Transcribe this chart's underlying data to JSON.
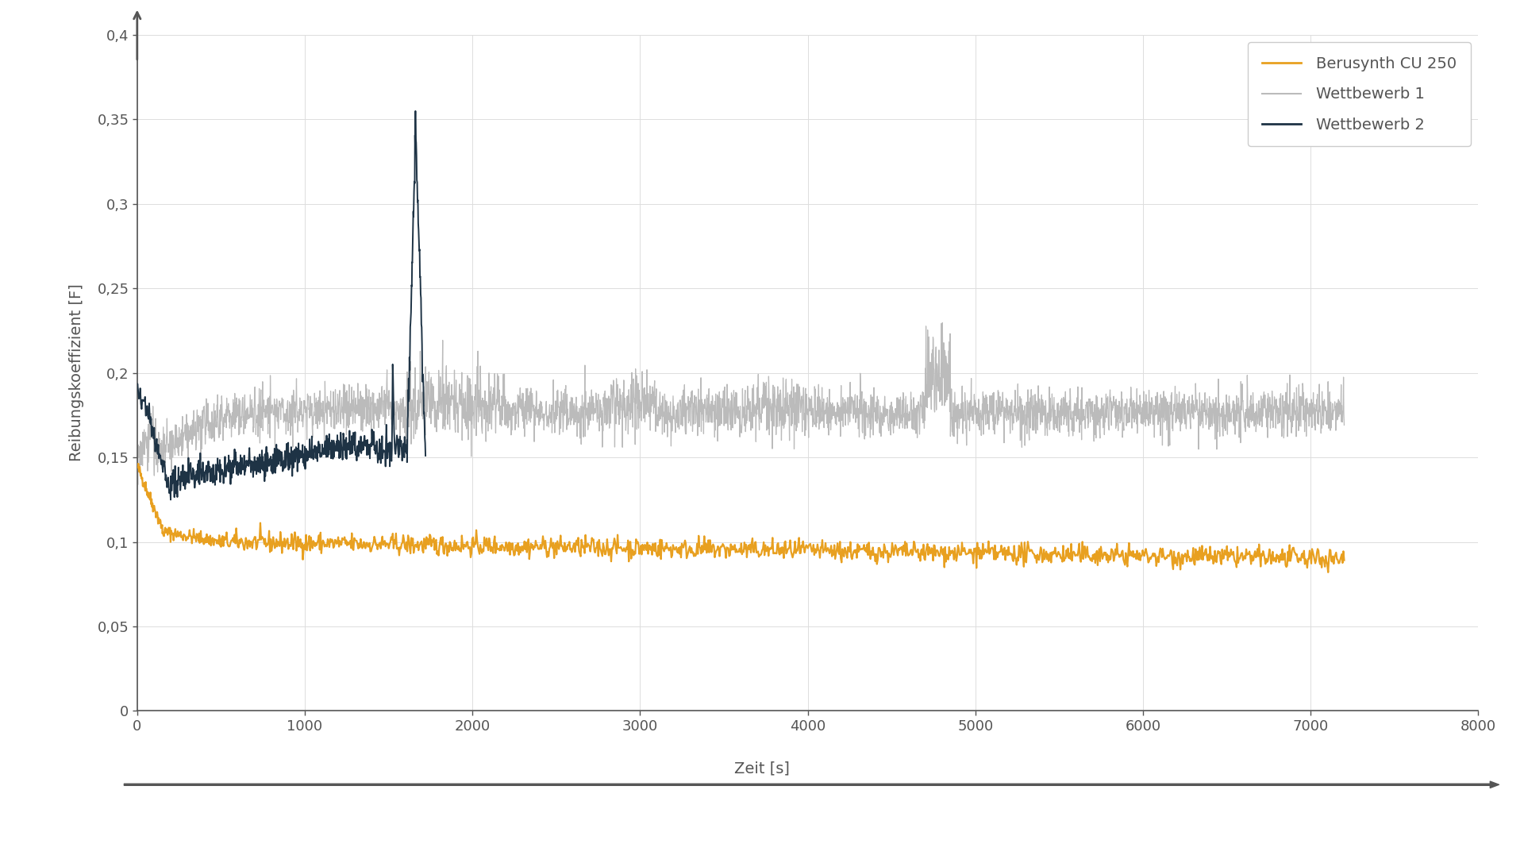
{
  "title": "",
  "ylabel": "Reibungskoeffizient [F]",
  "xlabel": "Zeit [s]",
  "xlim": [
    0,
    8000
  ],
  "ylim": [
    0,
    0.4
  ],
  "yticks": [
    0,
    0.05,
    0.1,
    0.15,
    0.2,
    0.25,
    0.3,
    0.35,
    0.4
  ],
  "xticks": [
    0,
    1000,
    2000,
    3000,
    4000,
    5000,
    6000,
    7000,
    8000
  ],
  "color_yellow": "#E8A020",
  "color_gray": "#BBBBBB",
  "color_dark": "#1E3345",
  "background_color": "#FFFFFF",
  "grid_color": "#DDDDDD",
  "legend_labels": [
    "Berusynth CU 250",
    "Wettbewerb 1",
    "Wettbewerb 2"
  ],
  "axis_color": "#555555",
  "tick_label_color": "#555555",
  "label_fontsize": 14,
  "tick_fontsize": 13,
  "legend_fontsize": 14
}
